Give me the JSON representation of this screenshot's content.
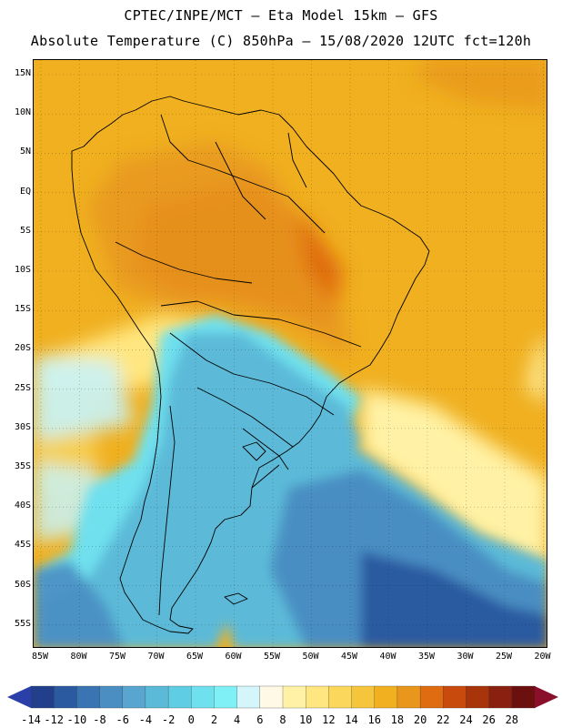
{
  "title_line1": "CPTEC/INPE/MCT –  Eta Model 15km – GFS",
  "title_line2": "Absolute Temperature (C) 850hPa – 15/08/2020 12UTC fct=120h",
  "lat_labels": [
    "15N",
    "10N",
    "5N",
    "EQ",
    "5S",
    "10S",
    "15S",
    "20S",
    "25S",
    "30S",
    "35S",
    "40S",
    "45S",
    "50S",
    "55S"
  ],
  "lon_labels": [
    "85W",
    "80W",
    "75W",
    "70W",
    "65W",
    "60W",
    "55W",
    "50W",
    "45W",
    "40W",
    "35W",
    "30W",
    "25W",
    "20W"
  ],
  "colorbar": {
    "labels": [
      "-14",
      "-12",
      "-10",
      "-8",
      "-6",
      "-4",
      "-2",
      "0",
      "2",
      "4",
      "6",
      "8",
      "10",
      "12",
      "14",
      "16",
      "18",
      "20",
      "22",
      "24",
      "26",
      "28"
    ],
    "colors": [
      "#223f8c",
      "#2c5aa0",
      "#3a74b3",
      "#4a8ec2",
      "#58a6cf",
      "#5bbad8",
      "#5fcde3",
      "#6fe0ee",
      "#7ff0f6",
      "#d4f5fa",
      "#fff9e6",
      "#fff2a6",
      "#ffe680",
      "#fbd85c",
      "#f5c63c",
      "#f0b020",
      "#e8961c",
      "#df6c10",
      "#c84a0c",
      "#a8340a",
      "#8a2010",
      "#6c0f0f"
    ],
    "low_extend_color": "#2a3fa8",
    "high_extend_color": "#8a0f2a"
  }
}
